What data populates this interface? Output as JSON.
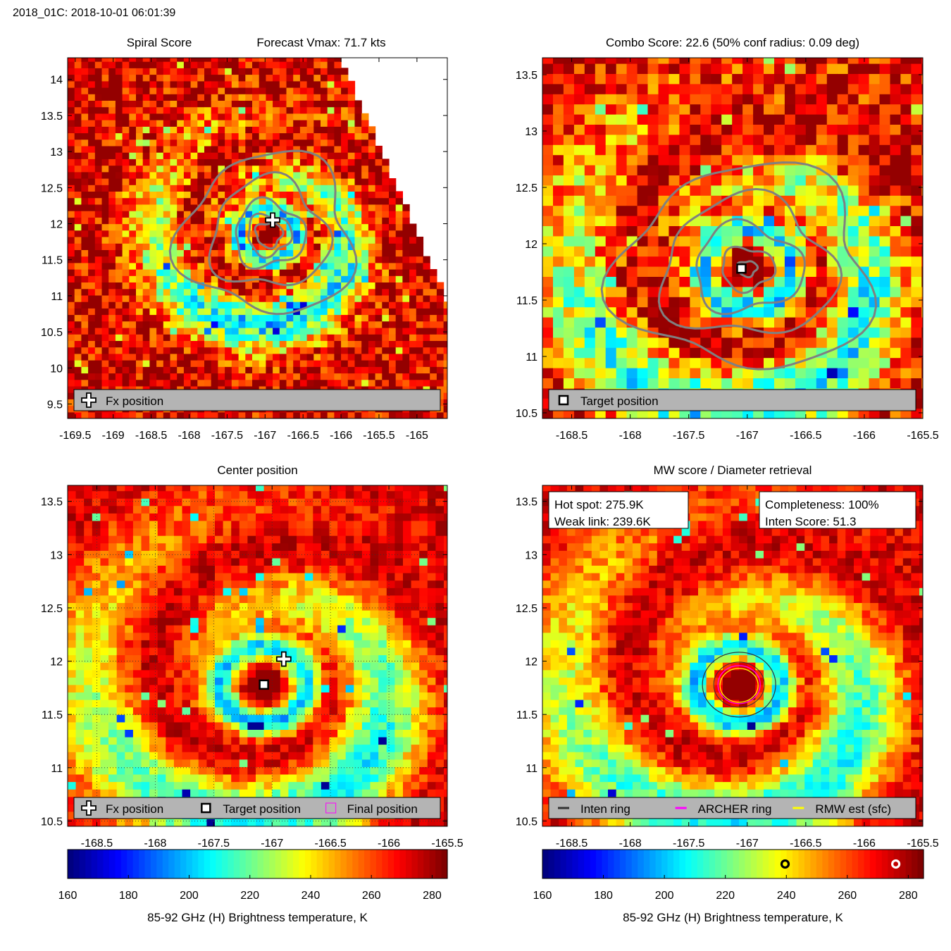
{
  "header": {
    "title": "2018_01C: 2018-10-01 06:01:39"
  },
  "colors": {
    "contour": "#808080",
    "legend_bg": "#b4b4b4",
    "inten_ring": "#333333",
    "archer_ring": "#ff00ff",
    "rmw_est": "#ffff00"
  },
  "icons": [
    "plus-marker-icon",
    "square-marker-icon",
    "ring-marker-icon"
  ],
  "chart_data": [
    {
      "id": "spiral",
      "type": "heatmap",
      "title_left": "Spiral Score",
      "title_right": "Forecast Vmax: 71.7 kts",
      "xlim": [
        -169.6,
        -164.6
      ],
      "ylim": [
        9.3,
        14.3
      ],
      "xticks": [
        "-169.5",
        "-169",
        "-168.5",
        "-168",
        "-167.5",
        "-167",
        "-166.5",
        "-166",
        "-165.5",
        "-165"
      ],
      "yticks": [
        "14",
        "13.5",
        "13",
        "12.5",
        "12",
        "11.5",
        "11",
        "10.5",
        "10",
        "9.5"
      ],
      "markers": [
        {
          "name": "fx-position",
          "shape": "plus",
          "lon": -166.9,
          "lat": 12.05
        }
      ],
      "legend": [
        {
          "marker": "plus",
          "label": "Fx position"
        }
      ],
      "grid": false
    },
    {
      "id": "combo",
      "type": "heatmap",
      "title": "Combo Score: 22.6  (50% conf radius: 0.09 deg)",
      "xlim": [
        -168.75,
        -165.5
      ],
      "ylim": [
        10.45,
        13.65
      ],
      "xticks": [
        "-168.5",
        "-168",
        "-167.5",
        "-167",
        "-166.5",
        "-166",
        "-165.5"
      ],
      "yticks": [
        "13.5",
        "13",
        "12.5",
        "12",
        "11.5",
        "11",
        "10.5"
      ],
      "markers": [
        {
          "name": "target-position",
          "shape": "square",
          "lon": -167.05,
          "lat": 11.78
        }
      ],
      "legend": [
        {
          "marker": "square",
          "label": "Target position"
        }
      ],
      "grid": false
    },
    {
      "id": "center",
      "type": "heatmap",
      "title": "Center position",
      "xlim": [
        -168.75,
        -165.5
      ],
      "ylim": [
        10.45,
        13.65
      ],
      "xticks": [
        "-168.5",
        "-168",
        "-167.5",
        "-167",
        "-166.5",
        "-166",
        "-165.5"
      ],
      "yticks": [
        "13.5",
        "13",
        "12.5",
        "12",
        "11.5",
        "11",
        "10.5"
      ],
      "markers": [
        {
          "name": "fx-position",
          "shape": "plus",
          "lon": -166.9,
          "lat": 12.02
        },
        {
          "name": "target-position",
          "shape": "square",
          "lon": -167.07,
          "lat": 11.78
        }
      ],
      "legend": [
        {
          "marker": "plus",
          "label": "Fx position"
        },
        {
          "marker": "square",
          "label": "Target position"
        },
        {
          "marker": "magenta-square",
          "label": "Final position"
        }
      ],
      "grid": true
    },
    {
      "id": "mw",
      "type": "heatmap",
      "title": "MW score / Diameter retrieval",
      "xlim": [
        -168.75,
        -165.5
      ],
      "ylim": [
        10.45,
        13.65
      ],
      "xticks": [
        "-168.5",
        "-168",
        "-167.5",
        "-167",
        "-166.5",
        "-166",
        "-165.5"
      ],
      "yticks": [
        "13.5",
        "13",
        "12.5",
        "12",
        "11.5",
        "11",
        "10.5"
      ],
      "info_left": [
        "Hot spot: 275.9K",
        "Weak link: 239.6K"
      ],
      "info_right": [
        "Completeness: 100%",
        "Inten Score: 51.3"
      ],
      "legend": [
        {
          "marker": "dark-line",
          "label": "Inten ring"
        },
        {
          "marker": "magenta-line",
          "label": "ARCHER ring"
        },
        {
          "marker": "yellow-line",
          "label": "RMW est (sfc)"
        }
      ],
      "grid": false
    }
  ],
  "colorbars": [
    {
      "range": [
        160,
        285
      ],
      "ticks": [
        "160",
        "180",
        "200",
        "220",
        "240",
        "260",
        "280"
      ],
      "label": "85-92 GHz (H) Brightness temperature, K",
      "markers": []
    },
    {
      "range": [
        160,
        285
      ],
      "ticks": [
        "160",
        "180",
        "200",
        "220",
        "240",
        "260",
        "280"
      ],
      "label": "85-92 GHz (H) Brightness temperature, K",
      "markers": [
        {
          "name": "weak-link-marker",
          "value": 239.6,
          "style": "dark"
        },
        {
          "name": "hot-spot-marker",
          "value": 275.9,
          "style": "light"
        }
      ]
    }
  ]
}
